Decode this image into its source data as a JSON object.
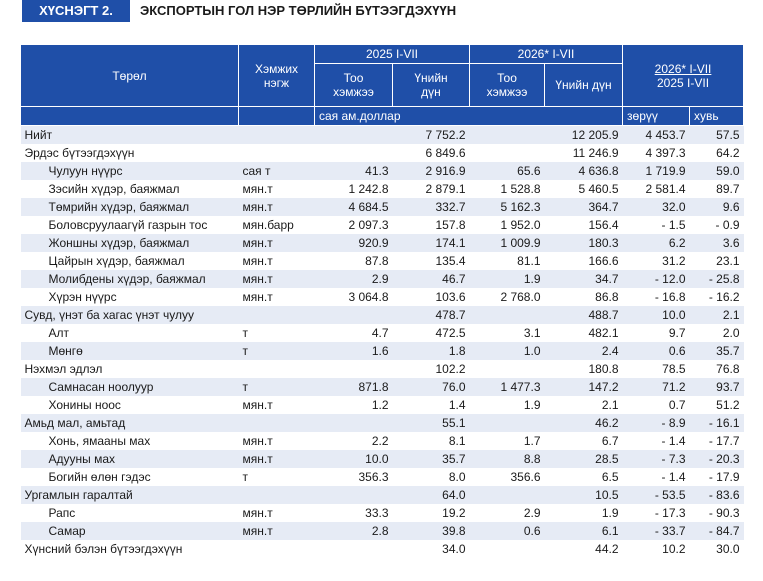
{
  "header": {
    "badge": "ХҮСНЭГТ 2.",
    "title": "ЭКСПОРТЫН ГОЛ НЭР ТӨРЛИЙН БҮТЭЭГДЭХҮҮН"
  },
  "columns": {
    "type": "Төрөл",
    "unit_l1": "Хэмжих",
    "unit_l2": "нэгж",
    "period_2025": "2025 I-VII",
    "period_2026": "2026* I-VII",
    "qty_l1": "Тоо",
    "qty_l2": "хэмжээ",
    "value_l1": "Үнийн",
    "value_l2": "дүн",
    "value_2026": "Үнийн дүн",
    "cmp_top": "2026* I-VII",
    "cmp_bottom": "2025  I-VII",
    "unit_money": "сая ам.доллар",
    "diff": "зөрүү",
    "pct": "хувь"
  },
  "rows": [
    {
      "name": "Нийт",
      "unit": "",
      "q25": "",
      "v25": "7 752.2",
      "q26": "",
      "v26": "12 205.9",
      "diff": "4 453.7",
      "pct": "57.5",
      "level": "main",
      "band": true
    },
    {
      "name": "Эрдэс бүтээгдэхүүн",
      "unit": "",
      "q25": "",
      "v25": "6 849.6",
      "q26": "",
      "v26": "11 246.9",
      "diff": "4 397.3",
      "pct": "64.2",
      "level": "main",
      "band": false
    },
    {
      "name": "Чулуун нүүрс",
      "unit": "сая т",
      "q25": "41.3",
      "v25": "2 916.9",
      "q26": "65.6",
      "v26": "4 636.8",
      "diff": "1 719.9",
      "pct": "59.0",
      "level": "sub",
      "band": true
    },
    {
      "name": "Зэсийн хүдэр, баяжмал",
      "unit": "мян.т",
      "q25": "1 242.8",
      "v25": "2 879.1",
      "q26": "1 528.8",
      "v26": "5 460.5",
      "diff": "2 581.4",
      "pct": "89.7",
      "level": "sub",
      "band": false
    },
    {
      "name": "Төмрийн хүдэр, баяжмал",
      "unit": "мян.т",
      "q25": "4 684.5",
      "v25": "332.7",
      "q26": "5 162.3",
      "v26": "364.7",
      "diff": "32.0",
      "pct": "9.6",
      "level": "sub",
      "band": true
    },
    {
      "name": "Боловсруулаагүй газрын тос",
      "unit": "мян.барр",
      "q25": "2 097.3",
      "v25": "157.8",
      "q26": "1 952.0",
      "v26": "156.4",
      "diff": "- 1.5",
      "pct": "- 0.9",
      "level": "sub",
      "band": false
    },
    {
      "name": "Жоншны хүдэр, баяжмал",
      "unit": "мян.т",
      "q25": "920.9",
      "v25": "174.1",
      "q26": "1 009.9",
      "v26": "180.3",
      "diff": "6.2",
      "pct": "3.6",
      "level": "sub",
      "band": true
    },
    {
      "name": "Цайрын хүдэр, баяжмал",
      "unit": "мян.т",
      "q25": "87.8",
      "v25": "135.4",
      "q26": "81.1",
      "v26": "166.6",
      "diff": "31.2",
      "pct": "23.1",
      "level": "sub",
      "band": false
    },
    {
      "name": "Молибдены хүдэр, баяжмал",
      "unit": "мян.т",
      "q25": "2.9",
      "v25": "46.7",
      "q26": "1.9",
      "v26": "34.7",
      "diff": "- 12.0",
      "pct": "- 25.8",
      "level": "sub",
      "band": true
    },
    {
      "name": "Хүрэн нүүрс",
      "unit": "мян.т",
      "q25": "3 064.8",
      "v25": "103.6",
      "q26": "2 768.0",
      "v26": "86.8",
      "diff": "- 16.8",
      "pct": "- 16.2",
      "level": "sub",
      "band": false
    },
    {
      "name": "Сувд, үнэт ба хагас үнэт чулуу",
      "unit": "",
      "q25": "",
      "v25": "478.7",
      "q26": "",
      "v26": "488.7",
      "diff": "10.0",
      "pct": "2.1",
      "level": "main",
      "band": true
    },
    {
      "name": "Алт",
      "unit": "т",
      "q25": "4.7",
      "v25": "472.5",
      "q26": "3.1",
      "v26": "482.1",
      "diff": "9.7",
      "pct": "2.0",
      "level": "sub",
      "band": false
    },
    {
      "name": "Мөнгө",
      "unit": "т",
      "q25": "1.6",
      "v25": "1.8",
      "q26": "1.0",
      "v26": "2.4",
      "diff": "0.6",
      "pct": "35.7",
      "level": "sub",
      "band": true
    },
    {
      "name": "Нэхмэл эдлэл",
      "unit": "",
      "q25": "",
      "v25": "102.2",
      "q26": "",
      "v26": "180.8",
      "diff": "78.5",
      "pct": "76.8",
      "level": "main",
      "band": false
    },
    {
      "name": "Самнасан ноолуур",
      "unit": "т",
      "q25": "871.8",
      "v25": "76.0",
      "q26": "1 477.3",
      "v26": "147.2",
      "diff": "71.2",
      "pct": "93.7",
      "level": "sub",
      "band": true
    },
    {
      "name": "Хонины ноос",
      "unit": "мян.т",
      "q25": "1.2",
      "v25": "1.4",
      "q26": "1.9",
      "v26": "2.1",
      "diff": "0.7",
      "pct": "51.2",
      "level": "sub",
      "band": false
    },
    {
      "name": "Амьд мал, амьтад",
      "unit": "",
      "q25": "",
      "v25": "55.1",
      "q26": "",
      "v26": "46.2",
      "diff": "- 8.9",
      "pct": "- 16.1",
      "level": "main",
      "band": true
    },
    {
      "name": "Хонь, ямааны мах",
      "unit": "мян.т",
      "q25": "2.2",
      "v25": "8.1",
      "q26": "1.7",
      "v26": "6.7",
      "diff": "- 1.4",
      "pct": "- 17.7",
      "level": "sub",
      "band": false
    },
    {
      "name": "Адууны мах",
      "unit": "мян.т",
      "q25": "10.0",
      "v25": "35.7",
      "q26": "8.8",
      "v26": "28.5",
      "diff": "- 7.3",
      "pct": "- 20.3",
      "level": "sub",
      "band": true
    },
    {
      "name": "Богийн өлөн гэдэс",
      "unit": "т",
      "q25": "356.3",
      "v25": "8.0",
      "q26": "356.6",
      "v26": "6.5",
      "diff": "- 1.4",
      "pct": "- 17.9",
      "level": "sub",
      "band": false
    },
    {
      "name": "Ургамлын гаралтай",
      "unit": "",
      "q25": "",
      "v25": "64.0",
      "q26": "",
      "v26": "10.5",
      "diff": "- 53.5",
      "pct": "- 83.6",
      "level": "main",
      "band": true
    },
    {
      "name": "Рапс",
      "unit": "мян.т",
      "q25": "33.3",
      "v25": "19.2",
      "q26": "2.9",
      "v26": "1.9",
      "diff": "- 17.3",
      "pct": "- 90.3",
      "level": "sub",
      "band": false
    },
    {
      "name": "Самар",
      "unit": "мян.т",
      "q25": "2.8",
      "v25": "39.8",
      "q26": "0.6",
      "v26": "6.1",
      "diff": "- 33.7",
      "pct": "- 84.7",
      "level": "sub",
      "band": true
    },
    {
      "name": "Хүнсний бэлэн бүтээгдэхүүн",
      "unit": "",
      "q25": "",
      "v25": "34.0",
      "q26": "",
      "v26": "44.2",
      "diff": "10.2",
      "pct": "30.0",
      "level": "main",
      "band": false
    }
  ]
}
